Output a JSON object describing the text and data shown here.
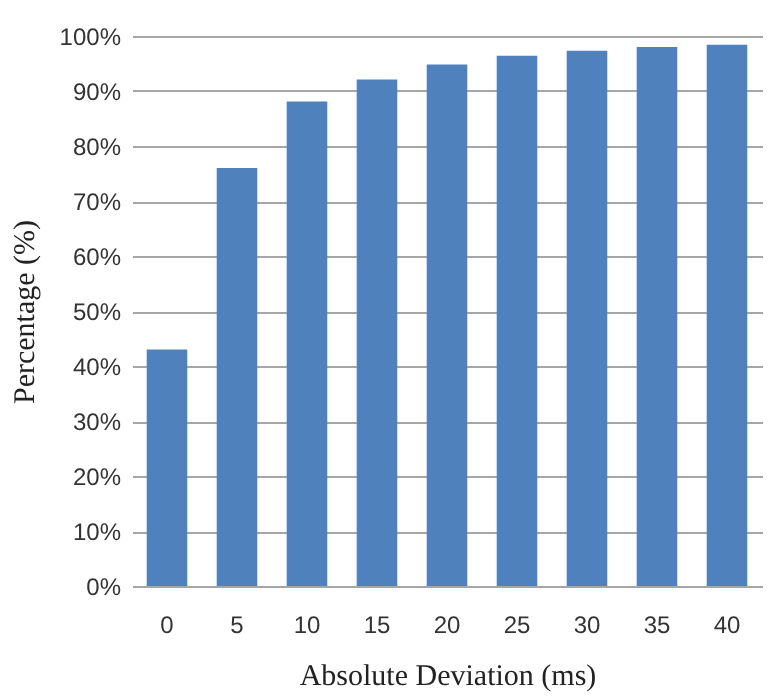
{
  "chart_data": {
    "type": "bar",
    "xlabel": "Absolute Deviation (ms)",
    "ylabel": "Percentage (%)",
    "categories": [
      "0",
      "5",
      "10",
      "15",
      "20",
      "25",
      "30",
      "35",
      "40"
    ],
    "values": [
      43.0,
      76.0,
      88.1,
      92.1,
      94.8,
      96.4,
      97.3,
      98.0,
      98.4
    ],
    "color": "#4f81bd",
    "ylim": [
      0,
      100
    ],
    "yticks": [
      {
        "value": 0,
        "label": "0%"
      },
      {
        "value": 10,
        "label": "10%"
      },
      {
        "value": 20,
        "label": "20%"
      },
      {
        "value": 30,
        "label": "30%"
      },
      {
        "value": 40,
        "label": "40%"
      },
      {
        "value": 50,
        "label": "50%"
      },
      {
        "value": 60,
        "label": "60%"
      },
      {
        "value": 70,
        "label": "70%"
      },
      {
        "value": 80,
        "label": "80%"
      },
      {
        "value": 90,
        "label": "90%"
      },
      {
        "value": 100,
        "label": "100%"
      }
    ],
    "grid": "y"
  }
}
